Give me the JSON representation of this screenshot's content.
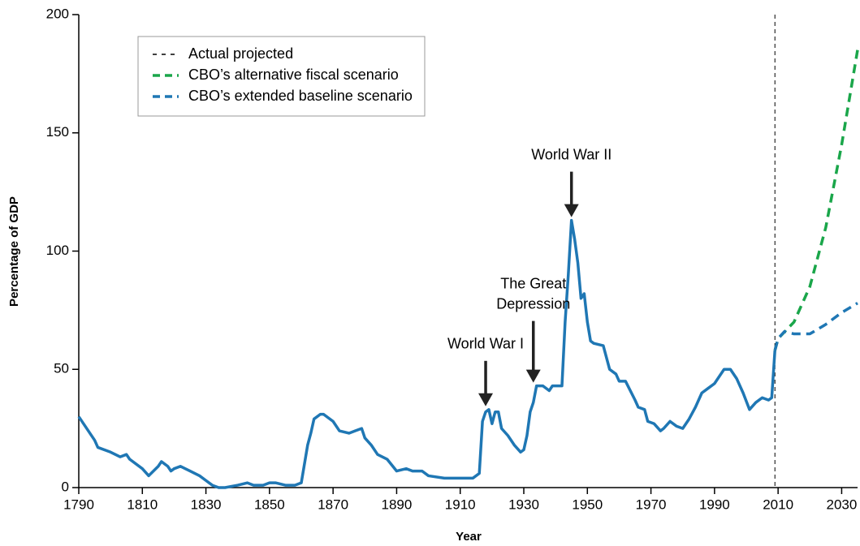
{
  "chart_data": {
    "type": "line",
    "xlabel": "Year",
    "ylabel": "Percentage of GDP",
    "xlim": [
      1790,
      2035
    ],
    "xticks": [
      1790,
      1810,
      1830,
      1850,
      1870,
      1890,
      1910,
      1930,
      1950,
      1970,
      1990,
      2010,
      2030
    ],
    "ylim": [
      0,
      200
    ],
    "yticks": [
      0,
      50,
      100,
      150,
      200
    ],
    "grid": false,
    "legend": "upper left",
    "divider": {
      "name": "Actual projected",
      "x": 2009,
      "color": "#000000"
    },
    "series": [
      {
        "color": "#1f77b4",
        "dashed": false,
        "x": [
          1790,
          1795,
          1796,
          1800,
          1803,
          1805,
          1806,
          1810,
          1812,
          1815,
          1816,
          1818,
          1819,
          1820,
          1822,
          1825,
          1828,
          1830,
          1832,
          1834,
          1836,
          1840,
          1843,
          1845,
          1848,
          1850,
          1852,
          1855,
          1857,
          1858,
          1860,
          1862,
          1863,
          1864,
          1866,
          1867,
          1870,
          1872,
          1875,
          1877,
          1879,
          1880,
          1882,
          1884,
          1887,
          1890,
          1893,
          1895,
          1898,
          1900,
          1905,
          1910,
          1914,
          1916,
          1917,
          1918,
          1919,
          1920,
          1921,
          1922,
          1923,
          1925,
          1927,
          1929,
          1930,
          1931,
          1932,
          1933,
          1934,
          1936,
          1938,
          1939,
          1942,
          1943,
          1944,
          1945,
          1946,
          1947,
          1948,
          1949,
          1950,
          1951,
          1952,
          1955,
          1957,
          1958,
          1959,
          1960,
          1962,
          1965,
          1966,
          1968,
          1969,
          1971,
          1973,
          1974,
          1976,
          1978,
          1980,
          1982,
          1984,
          1986,
          1988,
          1990,
          1993,
          1995,
          1997,
          1999,
          2001,
          2003,
          2005,
          2007,
          2008,
          2009
        ],
        "values": [
          30,
          20,
          17,
          15,
          13,
          14,
          12,
          8,
          5,
          9,
          11,
          9,
          7,
          8,
          9,
          7,
          5,
          3,
          1,
          0,
          0,
          1,
          2,
          1,
          1,
          2,
          2,
          1,
          1,
          1,
          2,
          18,
          23,
          29,
          31,
          31,
          28,
          24,
          23,
          24,
          25,
          21,
          18,
          14,
          12,
          7,
          8,
          7,
          7,
          5,
          4,
          4,
          4,
          6,
          28,
          32,
          33,
          27,
          32,
          32,
          25,
          22,
          18,
          15,
          16,
          22,
          32,
          36,
          43,
          43,
          41,
          43,
          43,
          70,
          90,
          113,
          105,
          95,
          80,
          82,
          70,
          62,
          61,
          60,
          50,
          49,
          48,
          45,
          45,
          37,
          34,
          33,
          28,
          27,
          24,
          25,
          28,
          26,
          25,
          29,
          34,
          40,
          42,
          44,
          50,
          50,
          46,
          40,
          33,
          36,
          38,
          37,
          38,
          58
        ]
      },
      {
        "name": "CBO’s alternative fiscal scenario",
        "color": "#1aa64a",
        "dashed": true,
        "x": [
          2009,
          2010,
          2015,
          2020,
          2025,
          2030,
          2035
        ],
        "values": [
          58,
          63,
          70,
          85,
          110,
          145,
          185
        ]
      },
      {
        "name": "CBO’s extended baseline scenario",
        "color": "#1f77b4",
        "dashed": true,
        "x": [
          2009,
          2010,
          2012,
          2015,
          2020,
          2025,
          2030,
          2035
        ],
        "values": [
          58,
          63,
          66,
          65,
          65,
          69,
          74,
          78
        ]
      }
    ],
    "annotations": [
      {
        "text": [
          "World War I"
        ],
        "x": 1918,
        "y": 33
      },
      {
        "text": [
          "The Great",
          "Depression"
        ],
        "x": 1933,
        "y": 43
      },
      {
        "text": [
          "World War II"
        ],
        "x": 1945,
        "y": 113
      }
    ]
  }
}
